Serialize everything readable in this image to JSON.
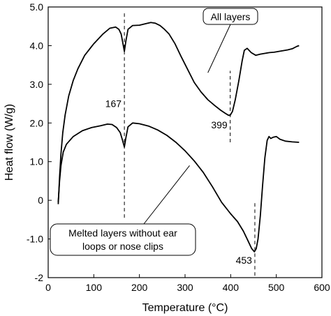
{
  "chart_data": {
    "type": "line",
    "title": "",
    "xlabel": "Temperature (°C)",
    "ylabel": "Heat flow (W/g)",
    "xlim": [
      0,
      600
    ],
    "ylim": [
      -2,
      5
    ],
    "xticks": [
      0,
      100,
      200,
      300,
      400,
      500,
      600
    ],
    "xtick_labels": [
      "0",
      "100",
      "200",
      "300",
      "400",
      "500",
      "600"
    ],
    "yticks": [
      -2,
      -1,
      0,
      1,
      2,
      3,
      4,
      5
    ],
    "ytick_labels": [
      "-2",
      "-1.0",
      "0",
      "1.0",
      "2.0",
      "3.0",
      "4.0",
      "5.0"
    ],
    "grid": false,
    "legend": "none",
    "series": [
      {
        "name": "All layers",
        "color": "#000000",
        "points": [
          [
            22,
            -0.1
          ],
          [
            25,
            0.6
          ],
          [
            28,
            1.2
          ],
          [
            32,
            1.75
          ],
          [
            37,
            2.2
          ],
          [
            45,
            2.7
          ],
          [
            55,
            3.1
          ],
          [
            65,
            3.4
          ],
          [
            80,
            3.75
          ],
          [
            100,
            4.05
          ],
          [
            120,
            4.3
          ],
          [
            135,
            4.45
          ],
          [
            148,
            4.48
          ],
          [
            155,
            4.42
          ],
          [
            160,
            4.3
          ],
          [
            164,
            4.05
          ],
          [
            167,
            3.85
          ],
          [
            170,
            4.1
          ],
          [
            175,
            4.42
          ],
          [
            185,
            4.52
          ],
          [
            200,
            4.53
          ],
          [
            215,
            4.57
          ],
          [
            225,
            4.6
          ],
          [
            235,
            4.58
          ],
          [
            245,
            4.52
          ],
          [
            255,
            4.42
          ],
          [
            265,
            4.3
          ],
          [
            278,
            4.05
          ],
          [
            290,
            3.75
          ],
          [
            305,
            3.4
          ],
          [
            320,
            3.05
          ],
          [
            335,
            2.8
          ],
          [
            350,
            2.6
          ],
          [
            365,
            2.45
          ],
          [
            378,
            2.33
          ],
          [
            388,
            2.25
          ],
          [
            395,
            2.2
          ],
          [
            399,
            2.2
          ],
          [
            404,
            2.3
          ],
          [
            410,
            2.6
          ],
          [
            418,
            3.1
          ],
          [
            425,
            3.6
          ],
          [
            430,
            3.88
          ],
          [
            436,
            3.93
          ],
          [
            445,
            3.82
          ],
          [
            455,
            3.75
          ],
          [
            465,
            3.78
          ],
          [
            475,
            3.8
          ],
          [
            485,
            3.82
          ],
          [
            495,
            3.83
          ],
          [
            505,
            3.85
          ],
          [
            515,
            3.87
          ],
          [
            525,
            3.89
          ],
          [
            535,
            3.92
          ],
          [
            545,
            3.98
          ],
          [
            550,
            4.0
          ]
        ]
      },
      {
        "name": "Melted layers without ear loops or nose clips",
        "color": "#000000",
        "points": [
          [
            22,
            -0.05
          ],
          [
            25,
            0.5
          ],
          [
            28,
            0.9
          ],
          [
            33,
            1.25
          ],
          [
            40,
            1.45
          ],
          [
            55,
            1.65
          ],
          [
            75,
            1.8
          ],
          [
            95,
            1.88
          ],
          [
            115,
            1.93
          ],
          [
            130,
            1.97
          ],
          [
            140,
            1.96
          ],
          [
            150,
            1.88
          ],
          [
            158,
            1.75
          ],
          [
            163,
            1.55
          ],
          [
            167,
            1.38
          ],
          [
            170,
            1.6
          ],
          [
            175,
            1.9
          ],
          [
            185,
            2.0
          ],
          [
            200,
            1.98
          ],
          [
            220,
            1.92
          ],
          [
            240,
            1.82
          ],
          [
            260,
            1.68
          ],
          [
            280,
            1.5
          ],
          [
            300,
            1.28
          ],
          [
            320,
            1.02
          ],
          [
            340,
            0.72
          ],
          [
            360,
            0.35
          ],
          [
            380,
            -0.05
          ],
          [
            400,
            -0.35
          ],
          [
            415,
            -0.55
          ],
          [
            428,
            -0.8
          ],
          [
            438,
            -1.05
          ],
          [
            446,
            -1.25
          ],
          [
            452,
            -1.33
          ],
          [
            456,
            -1.25
          ],
          [
            460,
            -1.0
          ],
          [
            465,
            -0.4
          ],
          [
            470,
            0.4
          ],
          [
            475,
            1.1
          ],
          [
            480,
            1.55
          ],
          [
            484,
            1.65
          ],
          [
            488,
            1.6
          ],
          [
            493,
            1.63
          ],
          [
            500,
            1.65
          ],
          [
            508,
            1.58
          ],
          [
            520,
            1.53
          ],
          [
            535,
            1.51
          ],
          [
            550,
            1.5
          ]
        ]
      }
    ],
    "annotations": [
      {
        "text": "167",
        "x": 167,
        "y": 2.5
      },
      {
        "text": "399",
        "x": 399,
        "y": 1.95
      },
      {
        "text": "453",
        "x": 453,
        "y": -1.55
      }
    ],
    "reference_lines": [
      {
        "x": 167,
        "y_from": -0.45,
        "y_to": 4.85
      },
      {
        "x": 399,
        "y_from": 1.5,
        "y_to": 3.35
      },
      {
        "x": 453,
        "y_from": -1.95,
        "y_to": -0.05
      }
    ],
    "callouts": [
      {
        "text": "All layers",
        "pointer": [
          350,
          3.3
        ]
      },
      {
        "lines": [
          "Melted layers without ear",
          "loops or nose clips"
        ],
        "pointer": [
          310,
          0.9
        ]
      }
    ]
  }
}
